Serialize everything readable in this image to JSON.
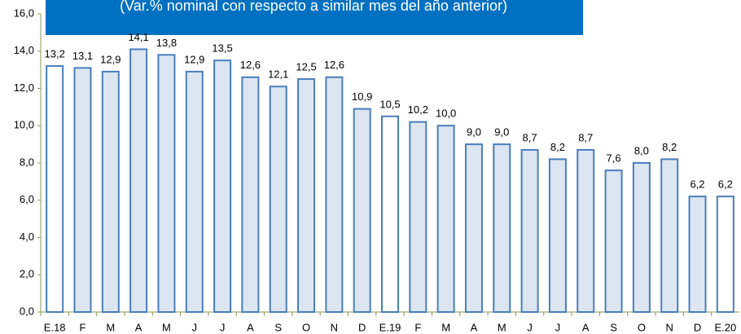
{
  "chart_data": {
    "type": "bar",
    "subtitle": "(Var.% nominal con respecto a similar mes del año anterior)",
    "categories": [
      "E.18",
      "F",
      "M",
      "A",
      "M",
      "J",
      "J",
      "A",
      "S",
      "O",
      "N",
      "D",
      "E.19",
      "F",
      "M",
      "A",
      "M",
      "J",
      "J",
      "A",
      "S",
      "O",
      "N",
      "D",
      "E.20"
    ],
    "values": [
      13.2,
      13.1,
      12.9,
      14.1,
      13.8,
      12.9,
      13.5,
      12.6,
      12.1,
      12.5,
      12.6,
      10.9,
      10.5,
      10.2,
      10.0,
      9.0,
      9.0,
      8.7,
      8.2,
      8.7,
      7.6,
      8.0,
      8.2,
      6.2,
      6.2
    ],
    "value_labels": [
      "13,2",
      "13,1",
      "12,9",
      "14,1",
      "13,8",
      "12,9",
      "13,5",
      "12,6",
      "12,1",
      "12,5",
      "12,6",
      "10,9",
      "10,5",
      "10,2",
      "10,0",
      "9,0",
      "9,0",
      "8,7",
      "8,2",
      "8,7",
      "7,6",
      "8,0",
      "8,2",
      "6,2",
      "6,2"
    ],
    "colors": [
      "#ffffff",
      "#dce6f2",
      "#dce6f2",
      "#dce6f2",
      "#dce6f2",
      "#dce6f2",
      "#dce6f2",
      "#dce6f2",
      "#dce6f2",
      "#dce6f2",
      "#dce6f2",
      "#dce6f2",
      "#ffffff",
      "#dce6f2",
      "#dce6f2",
      "#dce6f2",
      "#dce6f2",
      "#dce6f2",
      "#dce6f2",
      "#dce6f2",
      "#dce6f2",
      "#dce6f2",
      "#dce6f2",
      "#dce6f2",
      "#ffffff"
    ],
    "edge_color": "#4a7ebb",
    "ylim": [
      0,
      16
    ],
    "yticks": [
      {
        "value": 0,
        "label": "0,0"
      },
      {
        "value": 2,
        "label": "2,0"
      },
      {
        "value": 4,
        "label": "4,0"
      },
      {
        "value": 6,
        "label": "6,0"
      },
      {
        "value": 8,
        "label": "8,0"
      },
      {
        "value": 10,
        "label": "10,0"
      },
      {
        "value": 12,
        "label": "12,0"
      },
      {
        "value": 14,
        "label": "14,0"
      },
      {
        "value": 16,
        "label": "16,0"
      }
    ],
    "grid": false
  }
}
